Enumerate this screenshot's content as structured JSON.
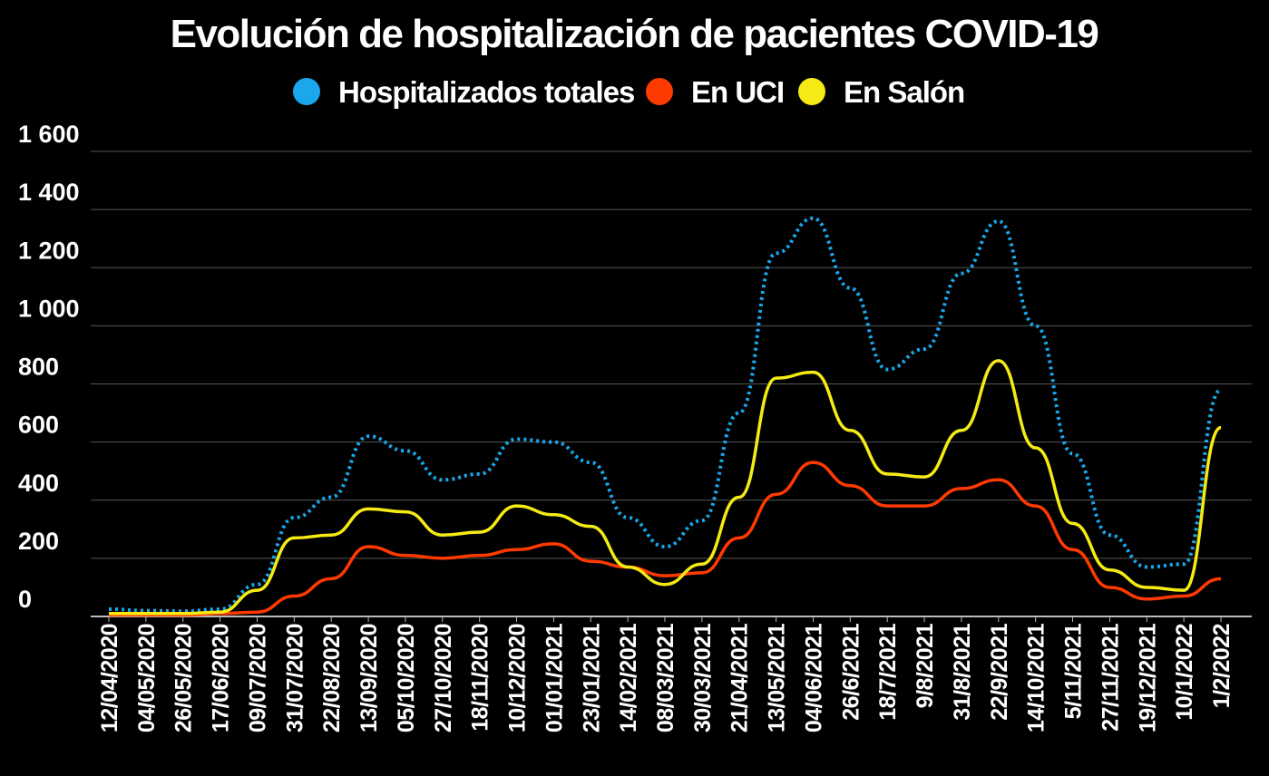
{
  "chart_data": {
    "type": "line",
    "title": "Evolución de hospitalización de pacientes COVID-19",
    "xlabel": "",
    "ylabel": "",
    "ylim": [
      0,
      1600
    ],
    "yticks": [
      0,
      200,
      400,
      600,
      800,
      1000,
      1200,
      1400,
      1600
    ],
    "ytick_labels": [
      "0",
      "200",
      "400",
      "600",
      "800",
      "1 000",
      "1 200",
      "1 400",
      "1 600"
    ],
    "grid": true,
    "legend_position": "top-center",
    "x": [
      "12/04/2020",
      "04/05/2020",
      "26/05/2020",
      "17/06/2020",
      "09/07/2020",
      "31/07/2020",
      "22/08/2020",
      "13/09/2020",
      "05/10/2020",
      "27/10/2020",
      "18/11/2020",
      "10/12/2020",
      "01/01/2021",
      "23/01/2021",
      "14/02/2021",
      "08/03/2021",
      "30/03/2021",
      "21/04/2021",
      "13/05/2021",
      "04/06/2021",
      "26/6/2021",
      "18/7/2021",
      "9/8/2021",
      "31/8/2021",
      "22/9/2021",
      "14/10/2021",
      "5/11/2021",
      "27/11/2021",
      "19/12/2021",
      "10/1/2022",
      "1/2/2022"
    ],
    "series": [
      {
        "name": "Hospitalizados totales",
        "color": "#1aa7ec",
        "style": "dotted",
        "values": [
          25,
          20,
          18,
          25,
          110,
          340,
          410,
          620,
          570,
          470,
          490,
          610,
          600,
          530,
          340,
          240,
          330,
          700,
          1250,
          1370,
          1130,
          850,
          920,
          1180,
          1360,
          1000,
          560,
          280,
          170,
          180,
          780
        ]
      },
      {
        "name": "En UCI",
        "color": "#ff3a00",
        "style": "solid",
        "values": [
          5,
          5,
          5,
          10,
          15,
          70,
          130,
          240,
          210,
          200,
          210,
          230,
          250,
          190,
          170,
          140,
          150,
          270,
          420,
          530,
          450,
          380,
          380,
          440,
          470,
          380,
          230,
          100,
          60,
          70,
          130
        ]
      },
      {
        "name": "En Salón",
        "color": "#f5ea14",
        "style": "solid",
        "values": [
          10,
          10,
          10,
          15,
          90,
          270,
          280,
          370,
          360,
          280,
          290,
          380,
          350,
          310,
          170,
          110,
          180,
          410,
          820,
          840,
          640,
          490,
          480,
          640,
          880,
          580,
          320,
          160,
          100,
          90,
          650
        ]
      }
    ]
  }
}
